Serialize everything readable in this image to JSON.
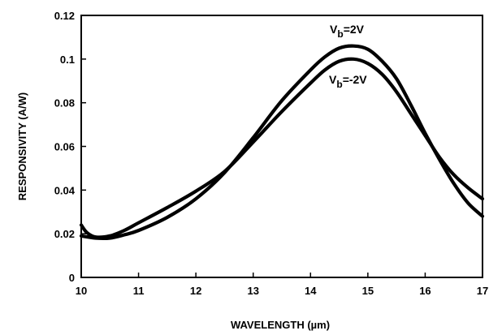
{
  "chart_data": {
    "type": "line",
    "xlabel": "WAVELENGTH (µm)",
    "ylabel": "RESPONSIVITY (A/W)",
    "xlim": [
      10,
      17
    ],
    "ylim": [
      0,
      0.12
    ],
    "x_ticks": [
      "10",
      "11",
      "12",
      "13",
      "14",
      "15",
      "16",
      "17"
    ],
    "y_ticks": [
      "0",
      "0.02",
      "0.04",
      "0.06",
      "0.08",
      "0.1",
      "0.12"
    ],
    "grid": false,
    "legend": "none",
    "series": [
      {
        "name": "Vb=2V",
        "label_main": "V",
        "label_sub": "b",
        "label_rest": "=2V",
        "x": [
          10.0,
          10.25,
          10.5,
          10.75,
          11.0,
          11.5,
          12.0,
          12.5,
          13.0,
          13.5,
          14.0,
          14.25,
          14.5,
          14.75,
          15.0,
          15.25,
          15.5,
          15.75,
          16.0,
          16.25,
          16.5,
          16.75,
          17.0
        ],
        "values": [
          0.019,
          0.018,
          0.018,
          0.0195,
          0.0215,
          0.0275,
          0.036,
          0.048,
          0.064,
          0.081,
          0.095,
          0.101,
          0.105,
          0.106,
          0.1045,
          0.099,
          0.091,
          0.079,
          0.066,
          0.054,
          0.043,
          0.034,
          0.028
        ]
      },
      {
        "name": "Vb=-2V",
        "label_main": "V",
        "label_sub": "b",
        "label_rest": "=-2V",
        "x": [
          10.0,
          10.1,
          10.25,
          10.5,
          10.75,
          11.0,
          11.5,
          12.0,
          12.5,
          13.0,
          13.5,
          14.0,
          14.25,
          14.5,
          14.75,
          15.0,
          15.25,
          15.5,
          15.75,
          16.0,
          16.25,
          16.5,
          16.75,
          17.0
        ],
        "values": [
          0.024,
          0.0205,
          0.0185,
          0.019,
          0.0215,
          0.025,
          0.032,
          0.0395,
          0.0485,
          0.062,
          0.076,
          0.089,
          0.095,
          0.099,
          0.1,
          0.098,
          0.093,
          0.085,
          0.075,
          0.065,
          0.055,
          0.047,
          0.041,
          0.036
        ]
      }
    ]
  }
}
